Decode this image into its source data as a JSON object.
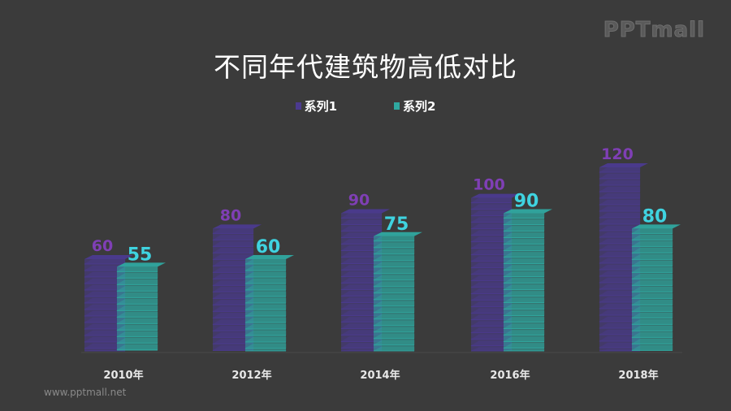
{
  "logo": "PPTmall",
  "footer_url": "www.pptmall.net",
  "colors": {
    "background": "#3b3b3b",
    "series1": "#4b3a8f",
    "series1_label": "#7f3fb5",
    "series2": "#2fa8a0",
    "series2_label": "#3fd3e0"
  },
  "chart_data": {
    "type": "bar",
    "title": "不同年代建筑物高低对比",
    "categories": [
      "2010年",
      "2012年",
      "2014年",
      "2016年",
      "2018年"
    ],
    "series": [
      {
        "name": "系列1",
        "values": [
          60,
          80,
          90,
          100,
          120
        ]
      },
      {
        "name": "系列2",
        "values": [
          55,
          60,
          75,
          90,
          80
        ]
      }
    ],
    "ylim": [
      0,
      120
    ],
    "grid": false,
    "legend": "top-center",
    "xlabel": "",
    "ylabel": ""
  }
}
